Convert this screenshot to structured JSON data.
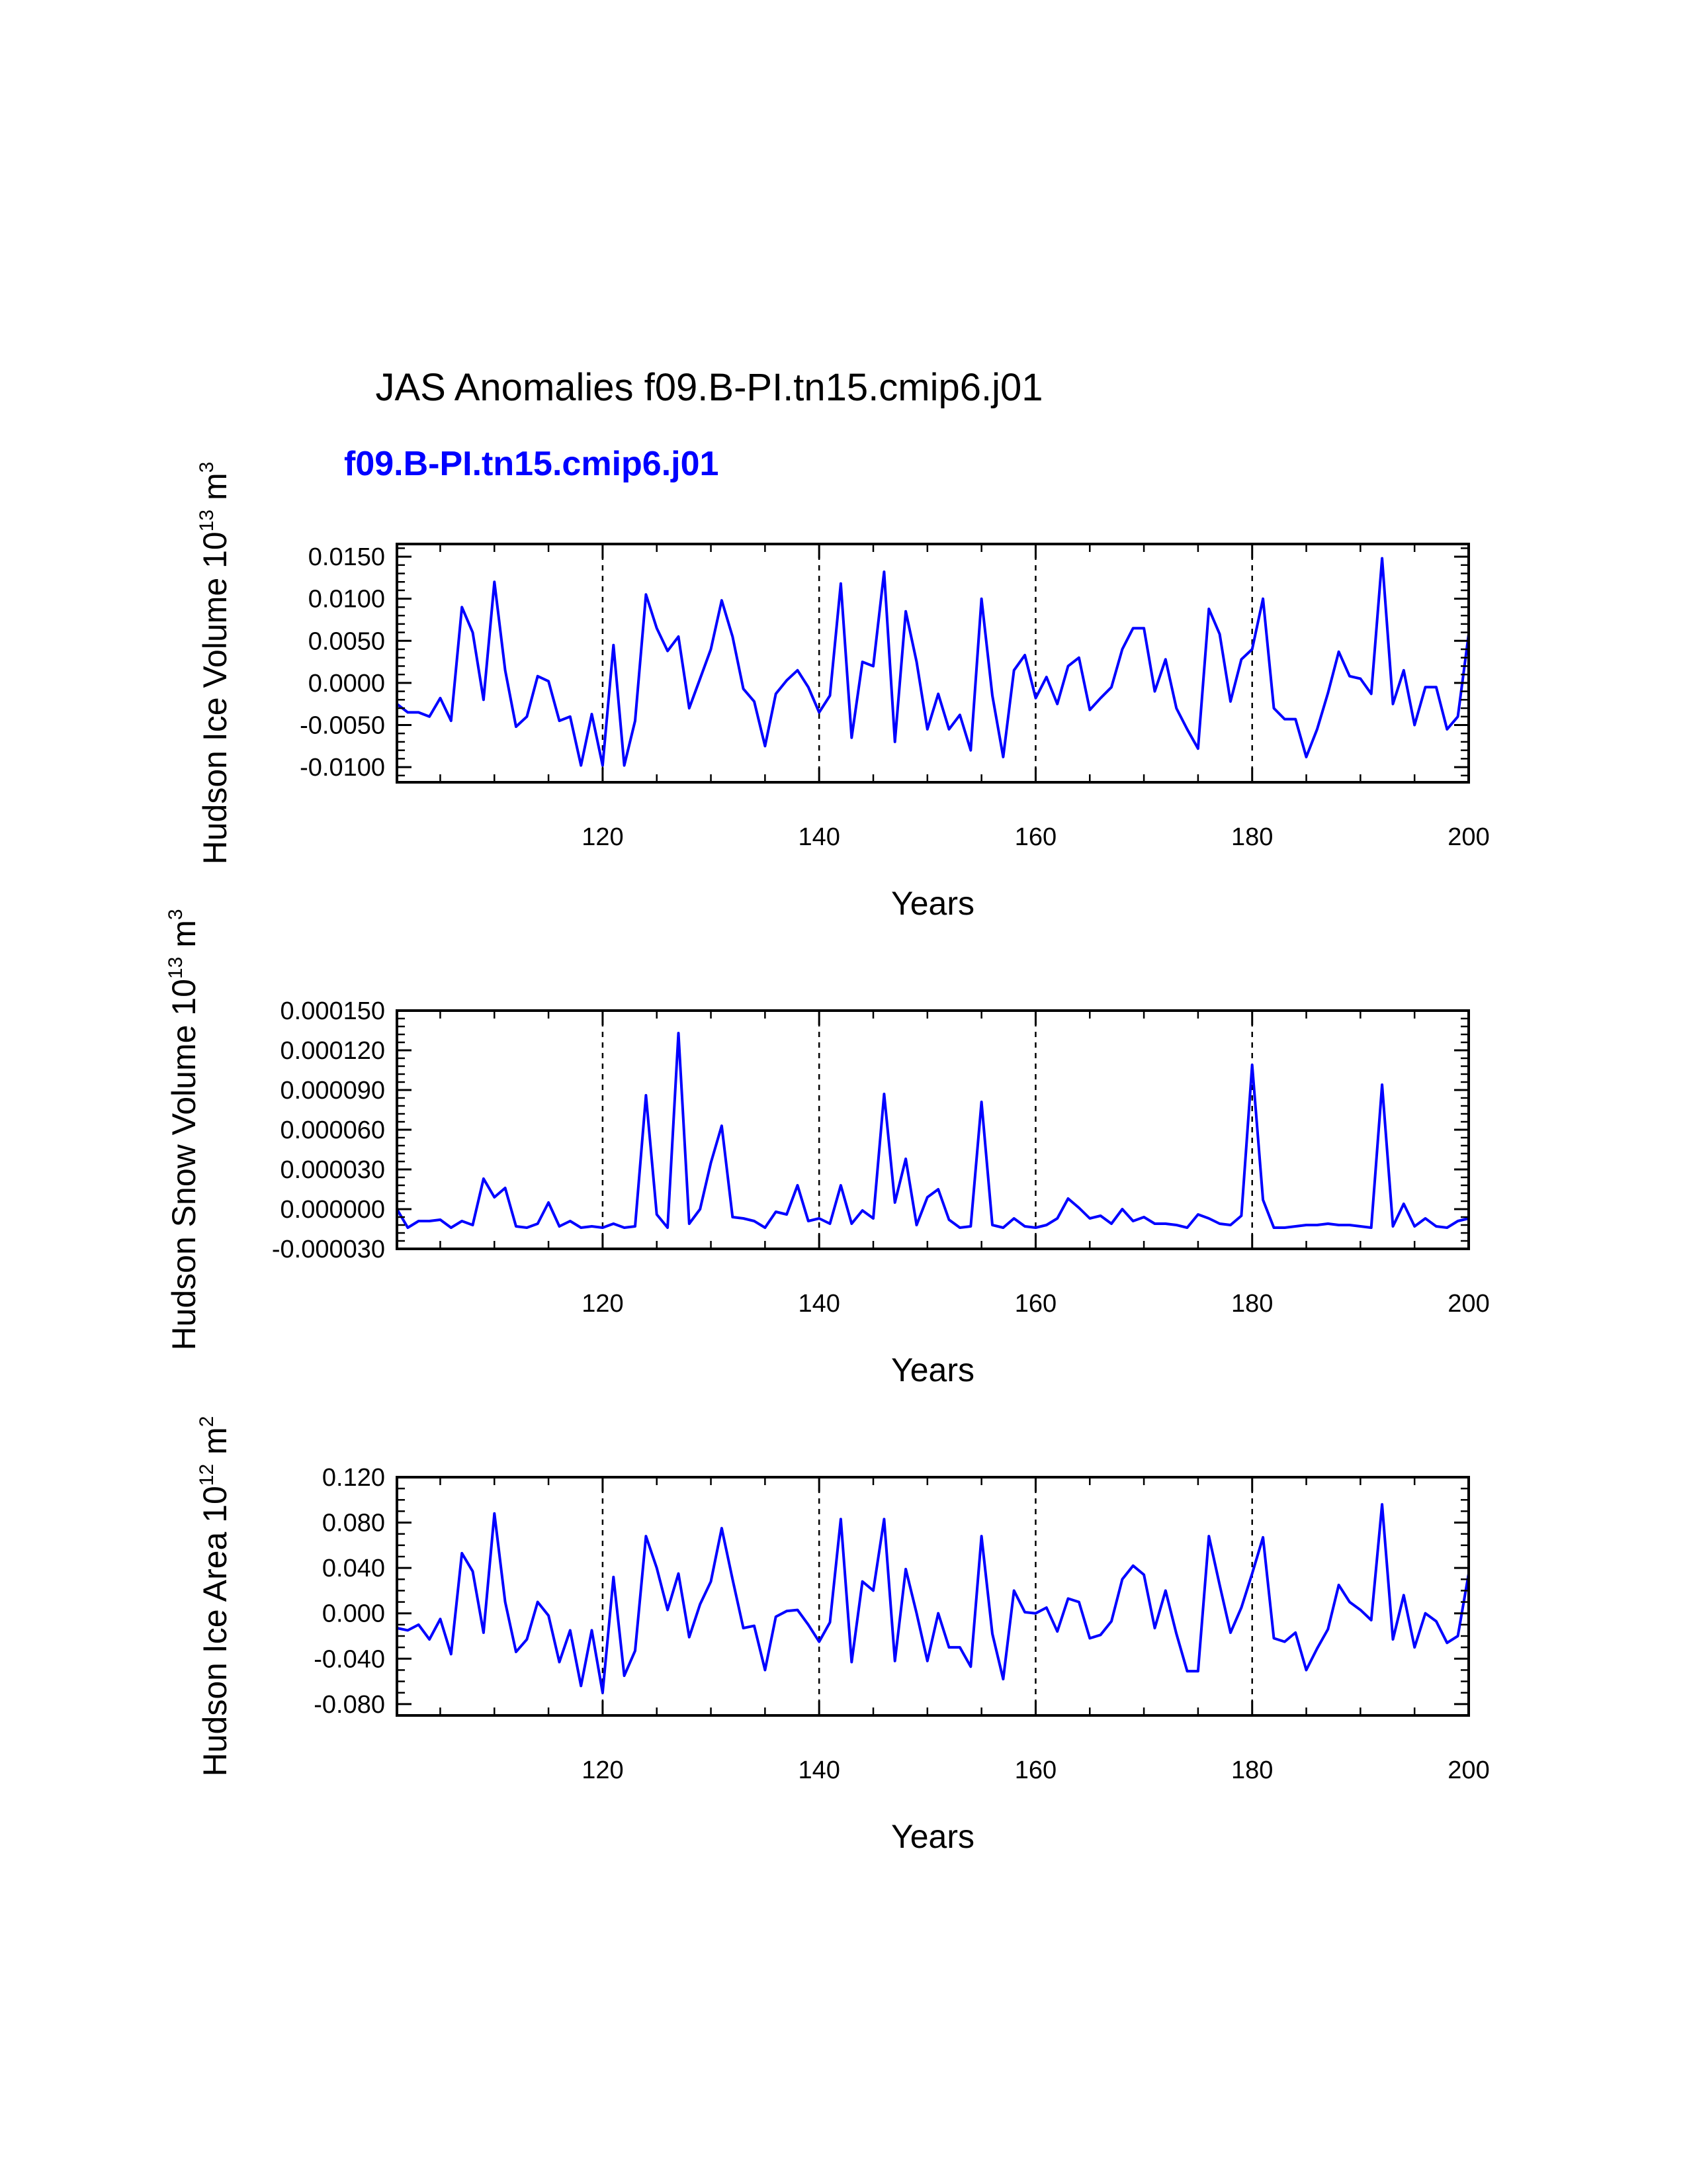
{
  "title": "JAS Anomalies f09.B-PI.tn15.cmip6.j01",
  "case_label": "f09.B-PI.tn15.cmip6.j01",
  "line_color": "#0000ff",
  "chart_data": [
    {
      "type": "line",
      "name": "ice-volume",
      "ylabel_parts": {
        "main": "Hudson Ice Volume 10",
        "exp": "13",
        "unit": " m",
        "unit_exp": "3"
      },
      "xlabel": "Years",
      "xlim": [
        101,
        200
      ],
      "ylim": [
        -0.0118,
        0.0165
      ],
      "x_ticks": [
        120,
        140,
        160,
        180,
        200
      ],
      "x_tick_labels": [
        "120",
        "140",
        "160",
        "180",
        "200"
      ],
      "y_ticks": [
        -0.01,
        -0.005,
        0.0,
        0.005,
        0.01,
        0.015
      ],
      "y_tick_labels": [
        "-0.0100",
        "-0.0050",
        "0.0000",
        "0.0050",
        "0.0100",
        "0.0150"
      ],
      "y_minor_step": 0.001,
      "dashed_x": [
        120,
        140,
        160,
        180
      ],
      "x_start": 101,
      "values": [
        -0.0025,
        -0.0035,
        -0.0035,
        -0.004,
        -0.0018,
        -0.0045,
        0.009,
        0.006,
        -0.002,
        0.012,
        0.0015,
        -0.0052,
        -0.004,
        0.0008,
        0.0002,
        -0.0045,
        -0.004,
        -0.0098,
        -0.0037,
        -0.0098,
        0.0045,
        -0.0098,
        -0.0045,
        0.0105,
        0.0065,
        0.0038,
        0.0055,
        -0.003,
        0.0005,
        0.004,
        0.0098,
        0.0055,
        -0.0007,
        -0.0022,
        -0.0075,
        -0.0013,
        0.0003,
        0.0015,
        -0.0005,
        -0.0035,
        -0.0015,
        0.0118,
        -0.0065,
        0.0025,
        0.002,
        0.0132,
        -0.007,
        0.0085,
        0.0025,
        -0.0055,
        -0.0013,
        -0.0055,
        -0.0038,
        -0.008,
        0.01,
        -0.0015,
        -0.0088,
        0.0015,
        0.0033,
        -0.0018,
        0.0007,
        -0.0025,
        0.002,
        0.003,
        -0.0032,
        -0.0018,
        -0.0005,
        0.004,
        0.0065,
        0.0065,
        -0.001,
        0.0028,
        -0.003,
        -0.0055,
        -0.0078,
        0.0088,
        0.0058,
        -0.0022,
        0.0028,
        0.004,
        0.01,
        -0.003,
        -0.0043,
        -0.0043,
        -0.0088,
        -0.0055,
        -0.0012,
        0.0037,
        0.0008,
        0.0005,
        -0.0013,
        0.0148,
        -0.0025,
        0.0015,
        -0.005,
        -0.0005,
        -0.0005,
        -0.0055,
        -0.004,
        0.0058
      ]
    },
    {
      "type": "line",
      "name": "snow-volume",
      "ylabel_parts": {
        "main": "Hudson Snow Volume 10",
        "exp": "13",
        "unit": " m",
        "unit_exp": "3"
      },
      "xlabel": "Years",
      "xlim": [
        101,
        200
      ],
      "ylim": [
        -3e-05,
        0.00015
      ],
      "x_ticks": [
        120,
        140,
        160,
        180,
        200
      ],
      "x_tick_labels": [
        "120",
        "140",
        "160",
        "180",
        "200"
      ],
      "y_ticks": [
        -3e-05,
        0.0,
        3e-05,
        6e-05,
        9e-05,
        0.00012,
        0.00015
      ],
      "y_tick_labels": [
        "-0.000030",
        "0.000000",
        "0.000030",
        "0.000060",
        "0.000090",
        "0.000120",
        "0.000150"
      ],
      "y_minor_step": 6e-06,
      "dashed_x": [
        120,
        140,
        160,
        180
      ],
      "x_start": 101,
      "values": [
        0.0,
        -1.4e-05,
        -9e-06,
        -9e-06,
        -8e-06,
        -1.4e-05,
        -9e-06,
        -1.2e-05,
        2.3e-05,
        9e-06,
        1.6e-05,
        -1.3e-05,
        -1.4e-05,
        -1.1e-05,
        5e-06,
        -1.3e-05,
        -9e-06,
        -1.4e-05,
        -1.3e-05,
        -1.4e-05,
        -1.1e-05,
        -1.4e-05,
        -1.3e-05,
        8.6e-05,
        -4e-06,
        -1.4e-05,
        0.000133,
        -1.1e-05,
        0.0,
        3.5e-05,
        6.3e-05,
        -6e-06,
        -7e-06,
        -9e-06,
        -1.4e-05,
        -2e-06,
        -4e-06,
        1.8e-05,
        -9e-06,
        -7e-06,
        -1.1e-05,
        1.8e-05,
        -1.1e-05,
        -1e-06,
        -7e-06,
        8.7e-05,
        5e-06,
        3.8e-05,
        -1.2e-05,
        9e-06,
        1.5e-05,
        -8e-06,
        -1.4e-05,
        -1.3e-05,
        8.1e-05,
        -1.2e-05,
        -1.4e-05,
        -7e-06,
        -1.3e-05,
        -1.4e-05,
        -1.2e-05,
        -7e-06,
        8e-06,
        1e-06,
        -7e-06,
        -5e-06,
        -1.1e-05,
        0.0,
        -9e-06,
        -6e-06,
        -1.1e-05,
        -1.1e-05,
        -1.2e-05,
        -1.4e-05,
        -4e-06,
        -7e-06,
        -1.1e-05,
        -1.2e-05,
        -5e-06,
        0.000109,
        7e-06,
        -1.4e-05,
        -1.4e-05,
        -1.3e-05,
        -1.2e-05,
        -1.2e-05,
        -1.1e-05,
        -1.2e-05,
        -1.2e-05,
        -1.3e-05,
        -1.4e-05,
        9.4e-05,
        -1.3e-05,
        4e-06,
        -1.3e-05,
        -7e-06,
        -1.3e-05,
        -1.4e-05,
        -9e-06,
        -7e-06
      ]
    },
    {
      "type": "line",
      "name": "ice-area",
      "ylabel_parts": {
        "main": "Hudson Ice Area 10",
        "exp": "12",
        "unit": " m",
        "unit_exp": "2"
      },
      "xlabel": "Years",
      "xlim": [
        101,
        200
      ],
      "ylim": [
        -0.09,
        0.12
      ],
      "x_ticks": [
        120,
        140,
        160,
        180,
        200
      ],
      "x_tick_labels": [
        "120",
        "140",
        "160",
        "180",
        "200"
      ],
      "y_ticks": [
        -0.08,
        -0.04,
        0.0,
        0.04,
        0.08,
        0.12
      ],
      "y_tick_labels": [
        "-0.080",
        "-0.040",
        "0.000",
        "0.040",
        "0.080",
        "0.120"
      ],
      "y_minor_step": 0.01,
      "dashed_x": [
        120,
        140,
        160,
        180
      ],
      "x_start": 101,
      "values": [
        -0.013,
        -0.015,
        -0.01,
        -0.023,
        -0.005,
        -0.036,
        0.053,
        0.037,
        -0.017,
        0.088,
        0.01,
        -0.034,
        -0.023,
        0.01,
        -0.002,
        -0.043,
        -0.015,
        -0.064,
        -0.015,
        -0.07,
        0.032,
        -0.055,
        -0.033,
        0.068,
        0.04,
        0.003,
        0.035,
        -0.021,
        0.008,
        0.028,
        0.075,
        0.03,
        -0.013,
        -0.011,
        -0.05,
        -0.003,
        0.002,
        0.003,
        -0.01,
        -0.025,
        -0.008,
        0.083,
        -0.043,
        0.028,
        0.02,
        0.083,
        -0.042,
        0.039,
        0.0,
        -0.042,
        0.0,
        -0.03,
        -0.03,
        -0.047,
        0.068,
        -0.018,
        -0.058,
        0.02,
        0.001,
        0.0,
        0.005,
        -0.016,
        0.013,
        0.01,
        -0.022,
        -0.019,
        -0.007,
        0.03,
        0.042,
        0.034,
        -0.013,
        0.02,
        -0.018,
        -0.051,
        -0.051,
        0.068,
        0.025,
        -0.017,
        0.005,
        0.035,
        0.067,
        -0.022,
        -0.025,
        -0.017,
        -0.05,
        -0.031,
        -0.014,
        0.025,
        0.01,
        0.003,
        -0.006,
        0.096,
        -0.023,
        0.016,
        -0.03,
        0.0,
        -0.007,
        -0.026,
        -0.02,
        0.035
      ]
    }
  ]
}
